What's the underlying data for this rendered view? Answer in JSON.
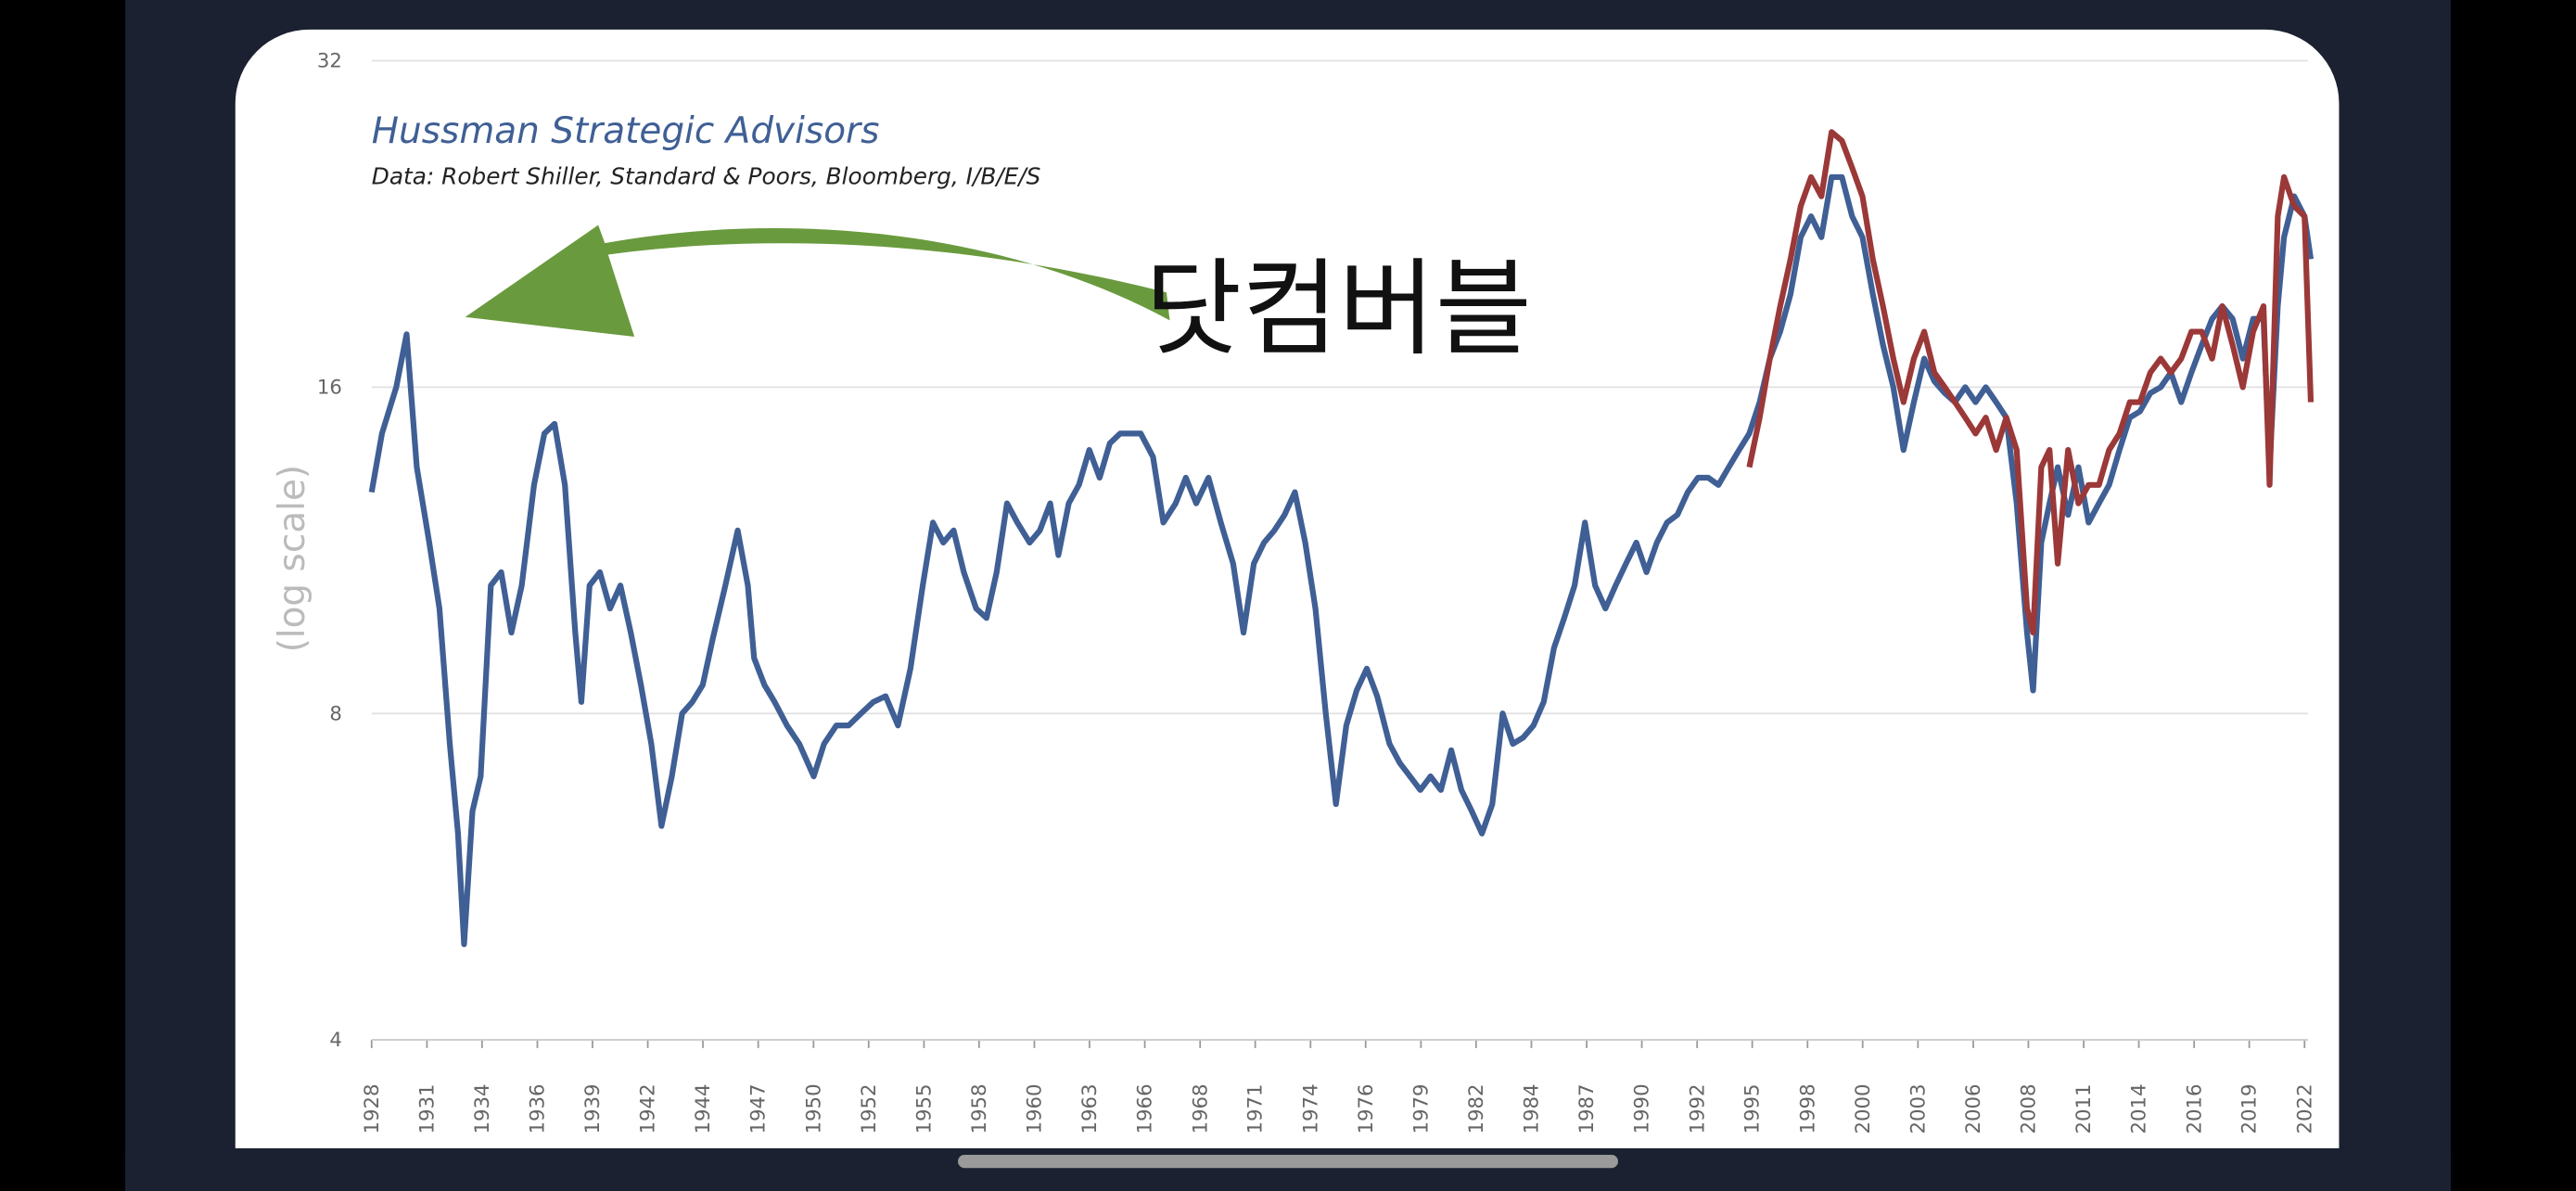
{
  "chart_data": {
    "type": "line",
    "title": "Hussman Strategic Advisors",
    "subtitle": "Data: Robert Shiller, Standard & Poors, Bloomberg, I/B/E/S",
    "y_label": "(log scale)",
    "annotation": "닷컴버블",
    "yscale": "log",
    "grid": true,
    "xlim": [
      1928,
      2022
    ],
    "xticks": [
      {
        "value": 1928.0,
        "label": "1928"
      },
      {
        "value": 1930.69,
        "label": "1931"
      },
      {
        "value": 1933.37,
        "label": "1934"
      },
      {
        "value": 1936.06,
        "label": "1936"
      },
      {
        "value": 1938.74,
        "label": "1939"
      },
      {
        "value": 1941.43,
        "label": "1942"
      },
      {
        "value": 1944.11,
        "label": "1944"
      },
      {
        "value": 1946.8,
        "label": "1947"
      },
      {
        "value": 1949.49,
        "label": "1950"
      },
      {
        "value": 1952.17,
        "label": "1952"
      },
      {
        "value": 1954.86,
        "label": "1955"
      },
      {
        "value": 1957.54,
        "label": "1958"
      },
      {
        "value": 1960.23,
        "label": "1960"
      },
      {
        "value": 1962.91,
        "label": "1963"
      },
      {
        "value": 1965.6,
        "label": "1966"
      },
      {
        "value": 1968.29,
        "label": "1968"
      },
      {
        "value": 1970.97,
        "label": "1971"
      },
      {
        "value": 1973.66,
        "label": "1974"
      },
      {
        "value": 1976.34,
        "label": "1976"
      },
      {
        "value": 1979.03,
        "label": "1979"
      },
      {
        "value": 1981.71,
        "label": "1982"
      },
      {
        "value": 1984.4,
        "label": "1984"
      },
      {
        "value": 1987.09,
        "label": "1987"
      },
      {
        "value": 1989.77,
        "label": "1990"
      },
      {
        "value": 1992.46,
        "label": "1992"
      },
      {
        "value": 1995.14,
        "label": "1995"
      },
      {
        "value": 1997.83,
        "label": "1998"
      },
      {
        "value": 2000.51,
        "label": "2000"
      },
      {
        "value": 2003.2,
        "label": "2003"
      },
      {
        "value": 2005.89,
        "label": "2006"
      },
      {
        "value": 2008.57,
        "label": "2008"
      },
      {
        "value": 2011.26,
        "label": "2011"
      },
      {
        "value": 2013.94,
        "label": "2014"
      },
      {
        "value": 2016.63,
        "label": "2016"
      },
      {
        "value": 2019.31,
        "label": "2019"
      },
      {
        "value": 2022.0,
        "label": "2022"
      }
    ],
    "ylim": [
      4,
      32
    ],
    "yticks": [
      4,
      8,
      16,
      32
    ],
    "series": [
      {
        "color": "#3f5f95",
        "x": [
          1928.0,
          1928.5,
          1929.2,
          1929.7,
          1930.2,
          1930.8,
          1931.3,
          1931.8,
          1932.2,
          1932.5,
          1932.9,
          1933.3,
          1933.8,
          1934.3,
          1934.8,
          1935.3,
          1935.9,
          1936.4,
          1936.9,
          1937.4,
          1937.9,
          1938.2,
          1938.6,
          1939.1,
          1939.6,
          1940.1,
          1940.6,
          1941.1,
          1941.6,
          1942.1,
          1942.6,
          1943.1,
          1943.6,
          1944.1,
          1944.6,
          1945.2,
          1945.8,
          1946.3,
          1946.6,
          1947.1,
          1947.6,
          1948.2,
          1948.8,
          1949.5,
          1950.0,
          1950.6,
          1951.2,
          1951.8,
          1952.4,
          1953.0,
          1953.6,
          1954.2,
          1954.8,
          1955.3,
          1955.8,
          1956.3,
          1956.8,
          1957.4,
          1957.9,
          1958.4,
          1958.9,
          1959.4,
          1960.0,
          1960.5,
          1961.0,
          1961.4,
          1961.9,
          1962.4,
          1962.9,
          1963.4,
          1963.9,
          1964.4,
          1964.9,
          1965.4,
          1966.0,
          1966.5,
          1967.1,
          1967.6,
          1968.1,
          1968.7,
          1969.3,
          1969.9,
          1970.4,
          1970.9,
          1971.4,
          1971.9,
          1972.4,
          1972.9,
          1973.4,
          1973.9,
          1974.4,
          1974.9,
          1975.4,
          1975.9,
          1976.4,
          1976.9,
          1977.5,
          1978.0,
          1978.5,
          1979.0,
          1979.5,
          1980.0,
          1980.5,
          1981.0,
          1981.5,
          1982.0,
          1982.5,
          1983.0,
          1983.5,
          1984.0,
          1984.5,
          1985.0,
          1985.5,
          1986.0,
          1986.5,
          1987.0,
          1987.5,
          1988.0,
          1988.5,
          1989.0,
          1989.5,
          1990.0,
          1990.5,
          1991.0,
          1991.5,
          1992.0,
          1992.5,
          1993.0,
          1993.5,
          1994.0,
          1994.5,
          1995.0,
          1995.5,
          1996.0,
          1996.5,
          1997.0,
          1997.5,
          1998.0,
          1998.5,
          1999.0,
          1999.5,
          2000.0,
          2000.5,
          2001.0,
          2001.5,
          2002.0,
          2002.5,
          2003.0,
          2003.5,
          2004.0,
          2004.5,
          2005.0,
          2005.5,
          2006.0,
          2006.5,
          2007.0,
          2007.5,
          2008.0,
          2008.5,
          2008.8,
          2009.2,
          2009.6,
          2010.0,
          2010.5,
          2011.0,
          2011.5,
          2012.0,
          2012.5,
          2013.0,
          2013.5,
          2014.0,
          2014.5,
          2015.0,
          2015.5,
          2016.0,
          2016.5,
          2017.0,
          2017.5,
          2018.0,
          2018.5,
          2019.0,
          2019.5,
          2020.0,
          2020.3,
          2020.7,
          2021.0,
          2021.5,
          2022.0,
          2022.3
        ],
        "values": [
          12.8,
          14.5,
          16,
          17.9,
          13.5,
          11.5,
          10,
          7.5,
          6.2,
          4.9,
          6.5,
          7.0,
          10.5,
          10.8,
          9.5,
          10.5,
          13,
          14.5,
          14.8,
          13,
          9.5,
          8.2,
          10.5,
          10.8,
          10,
          10.5,
          9.5,
          8.5,
          7.5,
          6.3,
          7,
          8,
          8.2,
          8.5,
          9.4,
          10.5,
          11.8,
          10.5,
          9,
          8.5,
          8.2,
          7.8,
          7.5,
          7,
          7.5,
          7.8,
          7.8,
          8,
          8.2,
          8.3,
          7.8,
          8.8,
          10.5,
          12,
          11.5,
          11.8,
          10.8,
          10,
          9.8,
          10.8,
          12.5,
          12,
          11.5,
          11.8,
          12.5,
          11.2,
          12.5,
          13,
          14,
          13.2,
          14.2,
          14.5,
          14.5,
          14.5,
          13.8,
          12,
          12.5,
          13.2,
          12.5,
          13.2,
          12,
          11,
          9.5,
          11,
          11.5,
          11.8,
          12.2,
          12.8,
          11.5,
          10,
          8,
          6.6,
          7.8,
          8.4,
          8.8,
          8.3,
          7.5,
          7.2,
          7,
          6.8,
          7,
          6.8,
          7.4,
          6.8,
          6.5,
          6.2,
          6.6,
          8,
          7.5,
          7.6,
          7.8,
          8.2,
          9.2,
          9.8,
          10.5,
          12,
          10.5,
          10,
          10.5,
          11,
          11.5,
          10.8,
          11.5,
          12,
          12.2,
          12.8,
          13.2,
          13.2,
          13,
          13.5,
          14,
          14.5,
          15.5,
          17,
          18,
          19.5,
          22,
          23,
          22,
          25,
          25,
          23,
          22,
          19.5,
          17.5,
          16,
          14,
          15.5,
          17,
          16.2,
          15.8,
          15.5,
          16,
          15.5,
          16,
          15.5,
          15,
          12.5,
          9.5,
          8.4,
          11.5,
          12.5,
          13.5,
          12.2,
          13.5,
          12,
          12.5,
          13,
          14,
          15,
          15.2,
          15.8,
          16,
          16.5,
          15.5,
          16.5,
          17.5,
          18.5,
          19,
          18.5,
          17,
          18.5,
          18.5,
          13.5,
          19,
          22,
          24,
          23,
          21
        ]
      },
      {
        "color": "#9b3838",
        "x": [
          1995.0,
          1995.5,
          1996.0,
          1996.5,
          1997.0,
          1997.5,
          1998.0,
          1998.5,
          1999.0,
          1999.5,
          2000.0,
          2000.5,
          2001.0,
          2001.5,
          2002.0,
          2002.5,
          2003.0,
          2003.5,
          2004.0,
          2004.5,
          2005.0,
          2005.5,
          2006.0,
          2006.5,
          2007.0,
          2007.5,
          2008.0,
          2008.5,
          2008.8,
          2009.2,
          2009.6,
          2010.0,
          2010.5,
          2011.0,
          2011.5,
          2012.0,
          2012.5,
          2013.0,
          2013.5,
          2014.0,
          2014.5,
          2015.0,
          2015.5,
          2016.0,
          2016.5,
          2017.0,
          2017.5,
          2018.0,
          2018.5,
          2019.0,
          2019.5,
          2020.0,
          2020.3,
          2020.7,
          2021.0,
          2021.5,
          2022.0,
          2022.3
        ],
        "values": [
          13.5,
          15,
          17,
          19,
          21,
          23.5,
          25,
          24,
          27.5,
          27,
          25.5,
          24,
          21,
          19,
          17,
          15.5,
          17,
          18,
          16.5,
          16,
          15.5,
          15,
          14.5,
          15,
          14,
          15,
          14,
          10,
          9.5,
          13.5,
          14,
          11,
          14,
          12.5,
          13,
          13,
          14,
          14.5,
          15.5,
          15.5,
          16.5,
          17,
          16.5,
          17,
          18,
          18,
          17,
          19,
          17.5,
          16,
          18,
          19,
          13,
          23,
          25,
          23.5,
          23,
          15.5
        ]
      }
    ]
  }
}
